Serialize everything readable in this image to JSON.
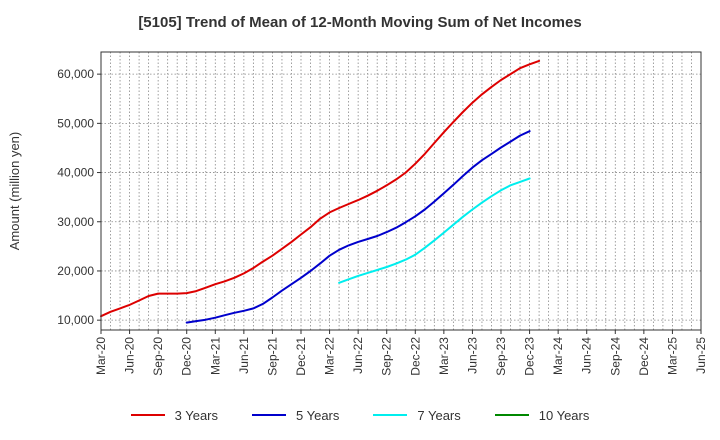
{
  "chart_data": {
    "type": "line",
    "title": "[5105]  Trend of Mean of 12-Month Moving Sum of Net Incomes",
    "xlabel": "",
    "ylabel": "Amount (million yen)",
    "x_tick_labels": [
      "Mar-20",
      "Jun-20",
      "Sep-20",
      "Dec-20",
      "Mar-21",
      "Jun-21",
      "Sep-21",
      "Dec-21",
      "Mar-22",
      "Jun-22",
      "Sep-22",
      "Dec-22",
      "Mar-23",
      "Jun-23",
      "Sep-23",
      "Dec-23",
      "Mar-24",
      "Jun-24",
      "Sep-24",
      "Dec-24",
      "Mar-25",
      "Jun-25"
    ],
    "y_ticks": [
      10000,
      20000,
      30000,
      40000,
      50000,
      60000
    ],
    "y_tick_labels": [
      "10,000",
      "20,000",
      "30,000",
      "40,000",
      "50,000",
      "60,000"
    ],
    "ylim": [
      8000,
      64500
    ],
    "grid": true,
    "legend_position": "bottom",
    "series": [
      {
        "name": "3 Years",
        "color": "#dd0000",
        "start_index": 0,
        "values": [
          10800,
          11700,
          12400,
          13100,
          14000,
          14900,
          15400,
          15400,
          15400,
          15500,
          15900,
          16600,
          17300,
          17900,
          18600,
          19500,
          20600,
          21900,
          23100,
          24500,
          25900,
          27400,
          28900,
          30600,
          31900,
          32800,
          33600,
          34400,
          35300,
          36300,
          37400,
          38600,
          40000,
          41800,
          43800,
          46000,
          48200,
          50300,
          52300,
          54200,
          55900,
          57400,
          58800,
          60000,
          61200,
          62000,
          62700
        ]
      },
      {
        "name": "5 Years",
        "color": "#0000cc",
        "start_index": 9,
        "values": [
          9500,
          9800,
          10100,
          10500,
          11000,
          11500,
          11900,
          12400,
          13300,
          14600,
          16000,
          17300,
          18600,
          20000,
          21500,
          23100,
          24300,
          25200,
          25900,
          26500,
          27100,
          27900,
          28800,
          29900,
          31100,
          32500,
          34100,
          35800,
          37500,
          39300,
          41000,
          42500,
          43800,
          45100,
          46300,
          47500,
          48400
        ]
      },
      {
        "name": "7 Years",
        "color": "#00eeee",
        "start_index": 25,
        "values": [
          17600,
          18300,
          19000,
          19600,
          20200,
          20800,
          21500,
          22300,
          23300,
          24700,
          26200,
          27800,
          29400,
          31000,
          32500,
          33900,
          35200,
          36400,
          37400,
          38100,
          38800
        ]
      },
      {
        "name": "10 Years",
        "color": "#008800",
        "start_index": 0,
        "values": []
      }
    ]
  }
}
